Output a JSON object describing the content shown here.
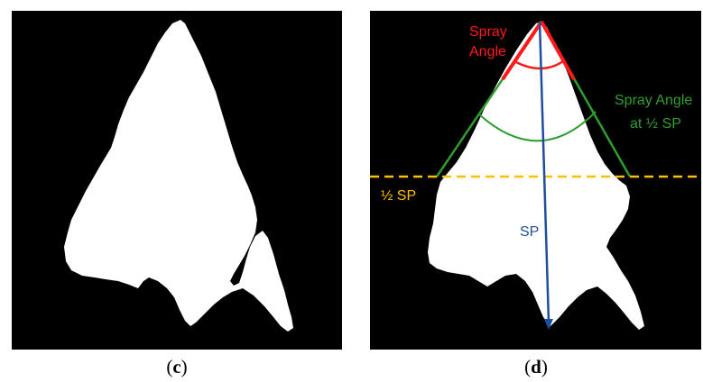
{
  "panels": [
    {
      "caption_open": "(",
      "caption_letter": "c",
      "caption_close": ")"
    },
    {
      "caption_open": "(",
      "caption_letter": "d",
      "caption_close": ")"
    }
  ],
  "annotations": {
    "spray_angle_line1": "Spray",
    "spray_angle_line2": "Angle",
    "half_angle_line1": "Spray Angle",
    "half_angle_line2": "at ½ SP",
    "half_sp": "½ SP",
    "sp": "SP"
  },
  "colors": {
    "spray_angle": "#ff1a1a",
    "half_angle": "#2e9e2e",
    "half_sp_line": "#ffc000",
    "sp_arrow": "#1f4e9c",
    "spray_fill": "#ffffff",
    "background": "#000000"
  }
}
